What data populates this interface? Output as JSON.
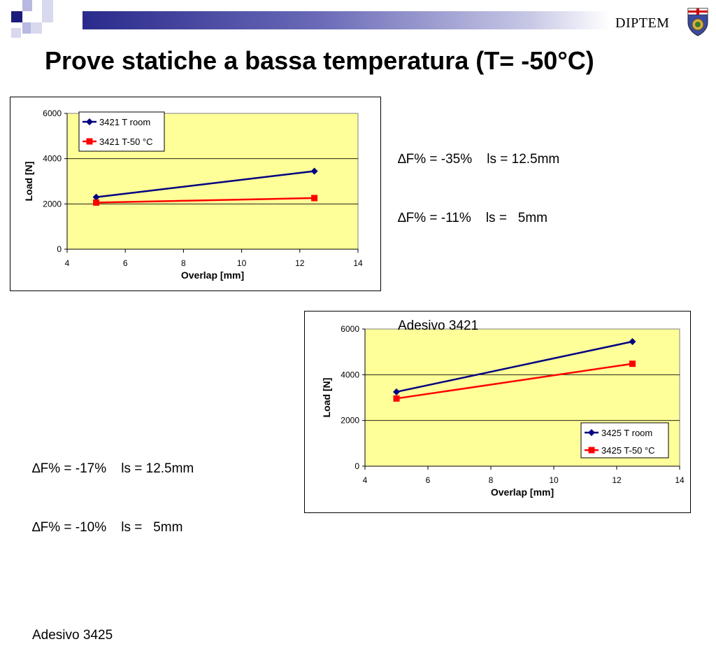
{
  "header": {
    "brand": "DIPTEM",
    "brand_crest": "university-crest-icon"
  },
  "page": {
    "title": "Prove statiche a bassa temperatura (T= -50°C)"
  },
  "notes": [
    {
      "line1": "∆F% = -35%    ls = 12.5mm",
      "line2": "∆F% = -11%    ls =   5mm",
      "line3": "Adesivo 3421"
    },
    {
      "line1": "∆F% = -17%    ls = 12.5mm",
      "line2": "∆F% = -10%    ls =   5mm",
      "line3": "Adesivo 3425"
    }
  ],
  "colors": {
    "plot_bg": "#ffff99",
    "series_room": "#000080",
    "series_cold": "#ff0000"
  },
  "chart_data": [
    {
      "type": "line",
      "xlabel": "Overlap [mm]",
      "ylabel": "Load [N]",
      "xlim": [
        4,
        14
      ],
      "ylim": [
        0,
        6000
      ],
      "xticks": [
        "4",
        "6",
        "8",
        "10",
        "12",
        "14"
      ],
      "yticks": [
        "0",
        "2000",
        "4000",
        "6000"
      ],
      "grid": "horizontal",
      "legend_position": "top-left",
      "series": [
        {
          "name": "3421 T room",
          "marker": "diamond",
          "color": "#000080",
          "points": [
            {
              "x": 5,
              "y": 2300
            },
            {
              "x": 12.5,
              "y": 3450
            }
          ]
        },
        {
          "name": "3421 T-50 °C",
          "marker": "square",
          "color": "#ff0000",
          "points": [
            {
              "x": 5,
              "y": 2060
            },
            {
              "x": 12.5,
              "y": 2260
            }
          ]
        }
      ]
    },
    {
      "type": "line",
      "xlabel": "Overlap [mm]",
      "ylabel": "Load [N]",
      "xlim": [
        4,
        14
      ],
      "ylim": [
        0,
        6000
      ],
      "xticks": [
        "4",
        "6",
        "8",
        "10",
        "12",
        "14"
      ],
      "yticks": [
        "0",
        "2000",
        "4000",
        "6000"
      ],
      "grid": "horizontal",
      "legend_position": "bottom-right",
      "series": [
        {
          "name": "3425 T room",
          "marker": "diamond",
          "color": "#000080",
          "points": [
            {
              "x": 5,
              "y": 3250
            },
            {
              "x": 12.5,
              "y": 5450
            }
          ]
        },
        {
          "name": "3425 T-50 °C",
          "marker": "square",
          "color": "#ff0000",
          "points": [
            {
              "x": 5,
              "y": 2960
            },
            {
              "x": 12.5,
              "y": 4480
            }
          ]
        }
      ]
    }
  ]
}
